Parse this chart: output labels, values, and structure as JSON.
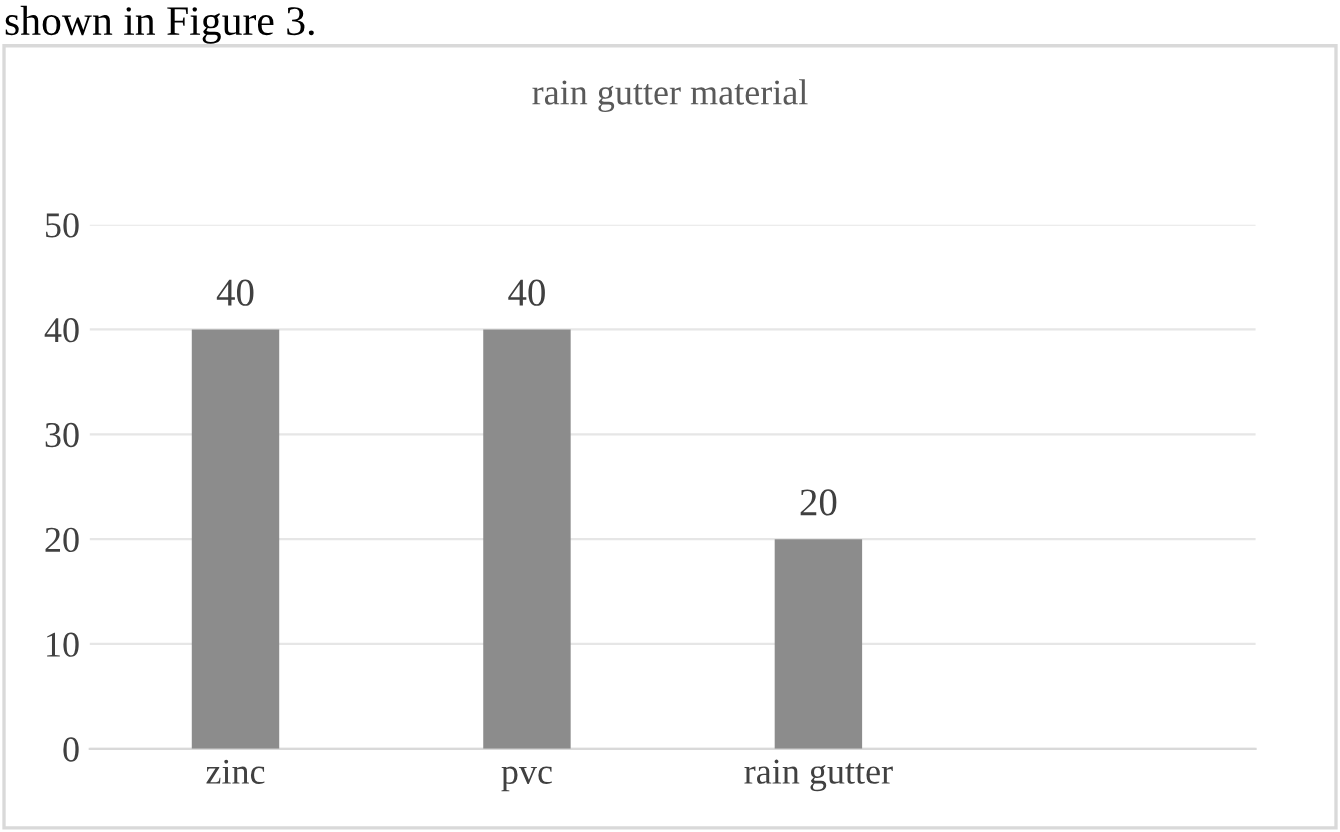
{
  "chart_data": {
    "type": "bar",
    "title": "rain gutter material",
    "categories": [
      "zinc",
      "pvc",
      "rain gutter",
      null
    ],
    "values": [
      40,
      40,
      20,
      null
    ],
    "color": "#8c8c8c",
    "ylim": [
      0,
      50
    ],
    "yticks": [
      0,
      10,
      20,
      30,
      40,
      50
    ],
    "grid": "y",
    "data_labels": true,
    "annotations": [
      "shown in Figure 3."
    ]
  }
}
